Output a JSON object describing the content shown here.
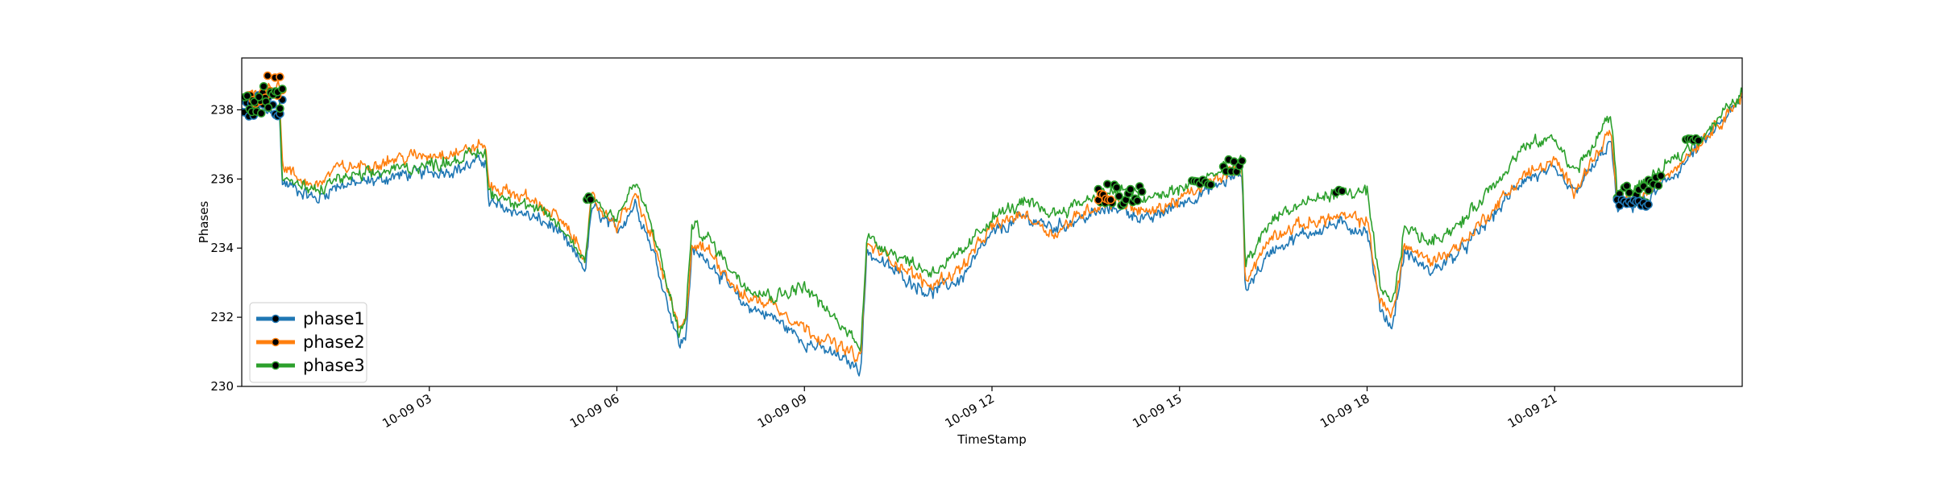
{
  "chart_data": {
    "type": "line",
    "title": "",
    "xlabel": "TimeStamp",
    "ylabel": "Phases",
    "xlim": [
      "10-09 00:00",
      "10-10 00:00"
    ],
    "ylim": [
      230,
      239.5
    ],
    "yticks": [
      230,
      232,
      234,
      236,
      238
    ],
    "xticks": [
      {
        "t": 3,
        "label": "10-09 03"
      },
      {
        "t": 6,
        "label": "10-09 06"
      },
      {
        "t": 9,
        "label": "10-09 09"
      },
      {
        "t": 12,
        "label": "10-09 12"
      },
      {
        "t": 15,
        "label": "10-09 15"
      },
      {
        "t": 18,
        "label": "10-09 18"
      },
      {
        "t": 21,
        "label": "10-09 21"
      }
    ],
    "grid": false,
    "legend": "lower-left",
    "series": [
      {
        "name": "phase1",
        "color": "#1f77b4",
        "points": [
          [
            0,
            237.9
          ],
          [
            0.3,
            237.9
          ],
          [
            0.6,
            237.9
          ],
          [
            0.65,
            235.9
          ],
          [
            0.9,
            235.7
          ],
          [
            1.2,
            235.4
          ],
          [
            1.5,
            235.8
          ],
          [
            2.0,
            235.9
          ],
          [
            2.5,
            236.1
          ],
          [
            3.0,
            236.2
          ],
          [
            3.5,
            236.3
          ],
          [
            3.9,
            236.6
          ],
          [
            3.95,
            235.3
          ],
          [
            4.5,
            235.0
          ],
          [
            5.0,
            234.6
          ],
          [
            5.5,
            233.4
          ],
          [
            5.6,
            235.2
          ],
          [
            5.8,
            234.8
          ],
          [
            6.0,
            234.5
          ],
          [
            6.3,
            235.3
          ],
          [
            6.6,
            233.8
          ],
          [
            7.0,
            231.2
          ],
          [
            7.1,
            231.4
          ],
          [
            7.2,
            233.9
          ],
          [
            7.5,
            233.6
          ],
          [
            8.0,
            232.4
          ],
          [
            8.5,
            232.0
          ],
          [
            9.0,
            231.3
          ],
          [
            9.5,
            230.9
          ],
          [
            9.9,
            230.5
          ],
          [
            10.0,
            233.9
          ],
          [
            10.3,
            233.5
          ],
          [
            11.0,
            232.7
          ],
          [
            11.5,
            233.1
          ],
          [
            12.0,
            234.4
          ],
          [
            12.5,
            234.9
          ],
          [
            13.0,
            234.6
          ],
          [
            13.5,
            234.9
          ],
          [
            14.0,
            235.2
          ],
          [
            14.5,
            234.8
          ],
          [
            15.0,
            235.3
          ],
          [
            15.5,
            235.7
          ],
          [
            16.0,
            236.2
          ],
          [
            16.05,
            232.8
          ],
          [
            16.5,
            234.0
          ],
          [
            17.0,
            234.4
          ],
          [
            17.5,
            234.7
          ],
          [
            18.0,
            234.5
          ],
          [
            18.2,
            232.3
          ],
          [
            18.4,
            231.7
          ],
          [
            18.6,
            233.9
          ],
          [
            19.0,
            233.3
          ],
          [
            19.5,
            233.9
          ],
          [
            20.0,
            234.9
          ],
          [
            20.5,
            236.0
          ],
          [
            21.0,
            236.2
          ],
          [
            21.3,
            235.6
          ],
          [
            21.6,
            236.3
          ],
          [
            21.9,
            237.1
          ],
          [
            22.0,
            235.1
          ],
          [
            22.5,
            235.4
          ],
          [
            23.0,
            236.3
          ],
          [
            23.5,
            237.3
          ],
          [
            24.0,
            238.3
          ]
        ]
      },
      {
        "name": "phase2",
        "color": "#ff7f0e",
        "points": [
          [
            0,
            238.4
          ],
          [
            0.3,
            238.6
          ],
          [
            0.6,
            238.8
          ],
          [
            0.65,
            236.4
          ],
          [
            0.9,
            236.0
          ],
          [
            1.2,
            235.8
          ],
          [
            1.5,
            236.3
          ],
          [
            2.0,
            236.4
          ],
          [
            2.5,
            236.6
          ],
          [
            3.0,
            236.7
          ],
          [
            3.5,
            236.8
          ],
          [
            3.9,
            237.0
          ],
          [
            3.95,
            235.8
          ],
          [
            4.5,
            235.5
          ],
          [
            5.0,
            235.0
          ],
          [
            5.5,
            233.8
          ],
          [
            5.6,
            235.4
          ],
          [
            5.8,
            235.0
          ],
          [
            6.0,
            234.7
          ],
          [
            6.3,
            235.5
          ],
          [
            6.6,
            234.1
          ],
          [
            7.0,
            231.6
          ],
          [
            7.1,
            231.8
          ],
          [
            7.2,
            234.1
          ],
          [
            7.5,
            233.9
          ],
          [
            8.0,
            232.6
          ],
          [
            8.5,
            232.4
          ],
          [
            9.0,
            231.7
          ],
          [
            9.5,
            231.2
          ],
          [
            9.9,
            230.8
          ],
          [
            10.0,
            234.1
          ],
          [
            10.3,
            233.8
          ],
          [
            11.0,
            232.9
          ],
          [
            11.5,
            233.4
          ],
          [
            12.0,
            234.6
          ],
          [
            12.5,
            235.0
          ],
          [
            13.0,
            234.4
          ],
          [
            13.5,
            235.1
          ],
          [
            14.0,
            235.4
          ],
          [
            14.5,
            235.0
          ],
          [
            15.0,
            235.4
          ],
          [
            15.5,
            235.9
          ],
          [
            16.0,
            236.4
          ],
          [
            16.05,
            233.1
          ],
          [
            16.5,
            234.4
          ],
          [
            17.0,
            234.7
          ],
          [
            17.5,
            234.9
          ],
          [
            18.0,
            234.8
          ],
          [
            18.2,
            232.5
          ],
          [
            18.4,
            232.0
          ],
          [
            18.6,
            234.1
          ],
          [
            19.0,
            233.6
          ],
          [
            19.5,
            234.1
          ],
          [
            20.0,
            235.1
          ],
          [
            20.5,
            236.1
          ],
          [
            21.0,
            236.5
          ],
          [
            21.3,
            235.7
          ],
          [
            21.6,
            236.5
          ],
          [
            21.9,
            237.4
          ],
          [
            22.0,
            235.3
          ],
          [
            22.5,
            235.6
          ],
          [
            23.0,
            236.5
          ],
          [
            23.5,
            237.4
          ],
          [
            24.0,
            238.4
          ]
        ]
      },
      {
        "name": "phase3",
        "color": "#2ca02c",
        "points": [
          [
            0,
            238.2
          ],
          [
            0.3,
            238.4
          ],
          [
            0.6,
            238.5
          ],
          [
            0.65,
            236.1
          ],
          [
            0.9,
            235.8
          ],
          [
            1.2,
            235.6
          ],
          [
            1.5,
            236.0
          ],
          [
            2.0,
            236.1
          ],
          [
            2.5,
            236.3
          ],
          [
            3.0,
            236.4
          ],
          [
            3.5,
            236.6
          ],
          [
            3.9,
            236.8
          ],
          [
            3.95,
            235.6
          ],
          [
            4.5,
            235.3
          ],
          [
            5.0,
            234.8
          ],
          [
            5.5,
            233.7
          ],
          [
            5.6,
            235.5
          ],
          [
            5.8,
            235.1
          ],
          [
            6.0,
            234.9
          ],
          [
            6.3,
            235.9
          ],
          [
            6.6,
            234.4
          ],
          [
            7.0,
            231.5
          ],
          [
            7.1,
            231.9
          ],
          [
            7.2,
            234.7
          ],
          [
            7.5,
            234.2
          ],
          [
            8.0,
            233.0
          ],
          [
            8.5,
            232.6
          ],
          [
            9.0,
            232.9
          ],
          [
            9.5,
            231.9
          ],
          [
            9.9,
            231.2
          ],
          [
            10.0,
            234.3
          ],
          [
            10.3,
            234.0
          ],
          [
            11.0,
            233.3
          ],
          [
            11.5,
            233.8
          ],
          [
            12.0,
            234.9
          ],
          [
            12.5,
            235.3
          ],
          [
            13.0,
            235.0
          ],
          [
            13.5,
            235.4
          ],
          [
            14.0,
            235.7
          ],
          [
            14.5,
            235.4
          ],
          [
            15.0,
            235.7
          ],
          [
            15.5,
            236.1
          ],
          [
            16.0,
            236.5
          ],
          [
            16.05,
            233.5
          ],
          [
            16.5,
            234.9
          ],
          [
            17.0,
            235.3
          ],
          [
            17.5,
            235.6
          ],
          [
            18.0,
            235.6
          ],
          [
            18.2,
            232.9
          ],
          [
            18.4,
            232.3
          ],
          [
            18.6,
            234.6
          ],
          [
            19.0,
            234.2
          ],
          [
            19.5,
            234.7
          ],
          [
            20.0,
            235.8
          ],
          [
            20.5,
            236.9
          ],
          [
            21.0,
            237.2
          ],
          [
            21.3,
            236.2
          ],
          [
            21.6,
            236.9
          ],
          [
            21.9,
            237.9
          ],
          [
            22.0,
            235.6
          ],
          [
            22.5,
            235.9
          ],
          [
            23.0,
            236.7
          ],
          [
            23.5,
            237.5
          ],
          [
            24.0,
            238.5
          ]
        ]
      }
    ],
    "markers": [
      {
        "series": "phase1",
        "t_start": 0.0,
        "t_end": 0.65,
        "v_low": 237.8,
        "v_high": 238.5
      },
      {
        "series": "phase2",
        "t_start": 0.1,
        "t_end": 0.65,
        "v_low": 238.1,
        "v_high": 239.0
      },
      {
        "series": "phase3",
        "t_start": 0.05,
        "t_end": 0.65,
        "v_low": 237.9,
        "v_high": 238.7
      },
      {
        "series": "phase3",
        "t_start": 5.52,
        "t_end": 5.58,
        "v_low": 235.4,
        "v_high": 235.5
      },
      {
        "series": "phase3",
        "t_start": 13.7,
        "t_end": 14.4,
        "v_low": 235.2,
        "v_high": 235.9
      },
      {
        "series": "phase2",
        "t_start": 13.7,
        "t_end": 13.9,
        "v_low": 235.3,
        "v_high": 235.6
      },
      {
        "series": "phase3",
        "t_start": 15.2,
        "t_end": 15.5,
        "v_low": 235.8,
        "v_high": 236.0
      },
      {
        "series": "phase3",
        "t_start": 15.7,
        "t_end": 16.0,
        "v_low": 236.2,
        "v_high": 236.6
      },
      {
        "series": "phase3",
        "t_start": 17.5,
        "t_end": 17.6,
        "v_low": 235.6,
        "v_high": 235.7
      },
      {
        "series": "phase3",
        "t_start": 22.0,
        "t_end": 22.5,
        "v_low": 235.3,
        "v_high": 235.9
      },
      {
        "series": "phase1",
        "t_start": 22.0,
        "t_end": 22.5,
        "v_low": 235.2,
        "v_high": 235.4
      },
      {
        "series": "phase3",
        "t_start": 22.5,
        "t_end": 22.7,
        "v_low": 235.8,
        "v_high": 236.2
      },
      {
        "series": "phase3",
        "t_start": 23.1,
        "t_end": 23.3,
        "v_low": 237.1,
        "v_high": 237.2
      }
    ]
  }
}
